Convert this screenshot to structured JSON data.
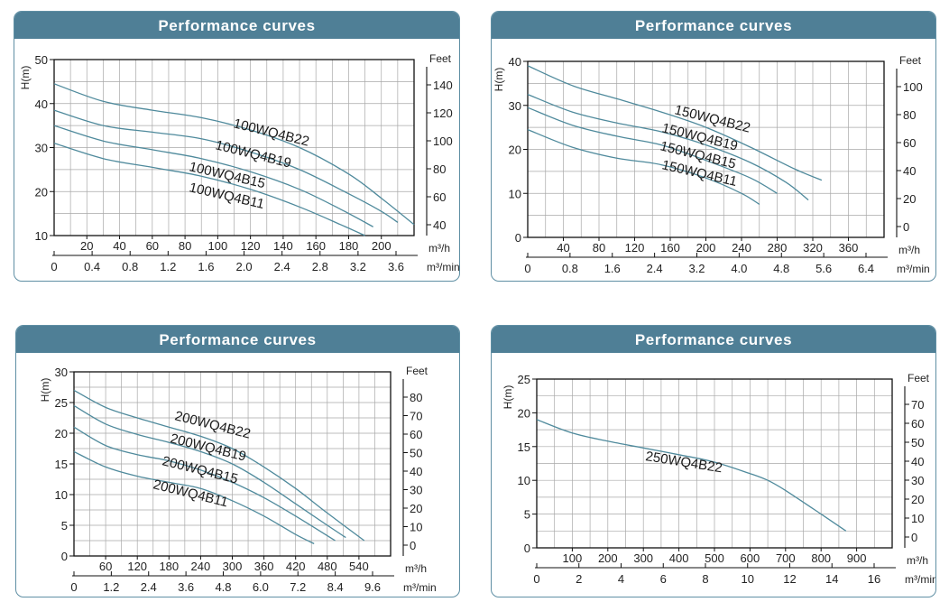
{
  "colors": {
    "header": "#4f7f96",
    "border": "#5f8fa4",
    "curve": "#4f8a9c",
    "grid": "#a8a8a8"
  },
  "panels": [
    {
      "title": "Performance curves"
    },
    {
      "title": "Performance curves"
    },
    {
      "title": "Performance curves"
    },
    {
      "title": "Performance curves"
    }
  ],
  "chart_data": [
    {
      "type": "line",
      "title": "Performance curves",
      "ylabel": "H(m)",
      "y2label": "Feet",
      "xlabel": "m³/h",
      "x2label": "m³/min",
      "xlim": [
        0,
        220
      ],
      "ylim": [
        10,
        50
      ],
      "y_ticks": [
        10,
        20,
        30,
        40,
        50
      ],
      "x_ticks": [
        20,
        40,
        60,
        80,
        100,
        120,
        140,
        160,
        180,
        200
      ],
      "x2_ticks": [
        "0",
        "0.4",
        "0.8",
        "1.2",
        "1.6",
        "2.0",
        "2.4",
        "2.8",
        "3.2",
        "3.6"
      ],
      "y2_ticks": [
        "40",
        "60",
        "80",
        "100",
        "120",
        "140"
      ],
      "grid": true,
      "series": [
        {
          "name": "100WQ4B22",
          "x": [
            0,
            30,
            60,
            90,
            120,
            150,
            180,
            200,
            220
          ],
          "y": [
            44.5,
            40.5,
            38.5,
            36.8,
            34,
            30,
            24,
            18.5,
            12.5
          ]
        },
        {
          "name": "100WQ4B19",
          "x": [
            0,
            30,
            60,
            90,
            120,
            150,
            180,
            200,
            210
          ],
          "y": [
            38.5,
            35,
            33.5,
            32,
            29,
            25,
            19.5,
            15.5,
            13
          ]
        },
        {
          "name": "100WQ4B15",
          "x": [
            0,
            30,
            60,
            90,
            120,
            150,
            175,
            195
          ],
          "y": [
            35,
            31.5,
            29.5,
            27.5,
            24.5,
            20.5,
            16,
            12
          ]
        },
        {
          "name": "100WQ4B11",
          "x": [
            0,
            30,
            60,
            90,
            120,
            150,
            175,
            190
          ],
          "y": [
            31,
            27.5,
            25.5,
            23.5,
            20.5,
            16.5,
            12.5,
            10
          ]
        }
      ]
    },
    {
      "type": "line",
      "title": "Performance curves",
      "ylabel": "H(m)",
      "y2label": "Feet",
      "xlabel": "m³/h",
      "x2label": "m³/min",
      "xlim": [
        0,
        400
      ],
      "ylim": [
        0,
        40
      ],
      "y_ticks": [
        0,
        10,
        20,
        30,
        40
      ],
      "x_ticks": [
        40,
        80,
        120,
        160,
        200,
        240,
        280,
        320,
        360
      ],
      "x2_ticks": [
        "0",
        "0.8",
        "1.6",
        "2.4",
        "3.2",
        "4.0",
        "4.8",
        "5.6",
        "6.4"
      ],
      "y2_ticks": [
        "0",
        "20",
        "40",
        "60",
        "80",
        "100"
      ],
      "grid": true,
      "series": [
        {
          "name": "150WQ4B22",
          "x": [
            0,
            50,
            100,
            150,
            200,
            250,
            300,
            330
          ],
          "y": [
            39,
            34.5,
            31.5,
            28.5,
            25,
            20.5,
            15.5,
            13
          ]
        },
        {
          "name": "150WQ4B19",
          "x": [
            0,
            50,
            100,
            150,
            200,
            250,
            290,
            315
          ],
          "y": [
            32.5,
            28.5,
            26,
            24,
            21,
            17,
            12.5,
            8.5
          ]
        },
        {
          "name": "150WQ4B15",
          "x": [
            0,
            50,
            100,
            150,
            200,
            250,
            280
          ],
          "y": [
            29.5,
            25.5,
            23,
            21,
            17.5,
            13.5,
            10
          ]
        },
        {
          "name": "150WQ4B11",
          "x": [
            0,
            50,
            100,
            150,
            200,
            240,
            260
          ],
          "y": [
            24.5,
            20.5,
            18,
            16.5,
            13.5,
            10,
            7.5
          ]
        }
      ]
    },
    {
      "type": "line",
      "title": "Performance curves",
      "ylabel": "H(m)",
      "y2label": "Feet",
      "xlabel": "m³/h",
      "x2label": "m³/min",
      "xlim": [
        0,
        600
      ],
      "ylim": [
        0,
        30
      ],
      "y_ticks": [
        0,
        5,
        10,
        15,
        20,
        25,
        30
      ],
      "x_ticks": [
        60,
        120,
        180,
        240,
        300,
        360,
        420,
        480,
        540
      ],
      "x2_ticks": [
        "0",
        "1.2",
        "2.4",
        "3.6",
        "4.8",
        "6.0",
        "7.2",
        "8.4",
        "9.6"
      ],
      "y2_ticks": [
        "0",
        "10",
        "20",
        "30",
        "40",
        "50",
        "60",
        "70",
        "80"
      ],
      "grid": true,
      "series": [
        {
          "name": "200WQ4B22",
          "x": [
            0,
            60,
            120,
            180,
            240,
            300,
            360,
            420,
            480,
            550
          ],
          "y": [
            27,
            24.2,
            22.5,
            21,
            19.5,
            17.5,
            14.5,
            11,
            7,
            2.5
          ]
        },
        {
          "name": "200WQ4B19",
          "x": [
            0,
            60,
            120,
            180,
            240,
            300,
            360,
            420,
            480,
            515
          ],
          "y": [
            24.5,
            21.5,
            19.8,
            18.5,
            17,
            15,
            12,
            8.5,
            5,
            3
          ]
        },
        {
          "name": "200WQ4B15",
          "x": [
            0,
            60,
            120,
            180,
            240,
            300,
            360,
            420,
            495
          ],
          "y": [
            21,
            18,
            16.5,
            15.5,
            14,
            12,
            9.5,
            6.5,
            2.5
          ]
        },
        {
          "name": "200WQ4B11",
          "x": [
            0,
            60,
            120,
            180,
            240,
            300,
            360,
            420,
            455
          ],
          "y": [
            17,
            14.5,
            13,
            12,
            11,
            9,
            6.5,
            3.5,
            2
          ]
        }
      ]
    },
    {
      "type": "line",
      "title": "Performance curves",
      "ylabel": "H(m)",
      "y2label": "Feet",
      "xlabel": "m³/h",
      "x2label": "m³/min",
      "xlim": [
        0,
        1000
      ],
      "ylim": [
        0,
        25
      ],
      "y_ticks": [
        0,
        5,
        10,
        15,
        20,
        25
      ],
      "x_ticks": [
        100,
        200,
        300,
        400,
        500,
        600,
        700,
        800,
        900
      ],
      "x2_ticks": [
        "0",
        "2",
        "4",
        "6",
        "8",
        "10",
        "12",
        "14",
        "16"
      ],
      "y2_ticks": [
        "0",
        "10",
        "20",
        "30",
        "40",
        "50",
        "60",
        "70"
      ],
      "grid": true,
      "series": [
        {
          "name": "250WQ4B22",
          "x": [
            0,
            100,
            200,
            300,
            400,
            500,
            600,
            650,
            700,
            800,
            870
          ],
          "y": [
            19,
            17,
            15.8,
            14.8,
            13.8,
            12.7,
            11,
            10,
            8.5,
            5,
            2.5
          ]
        }
      ]
    }
  ]
}
